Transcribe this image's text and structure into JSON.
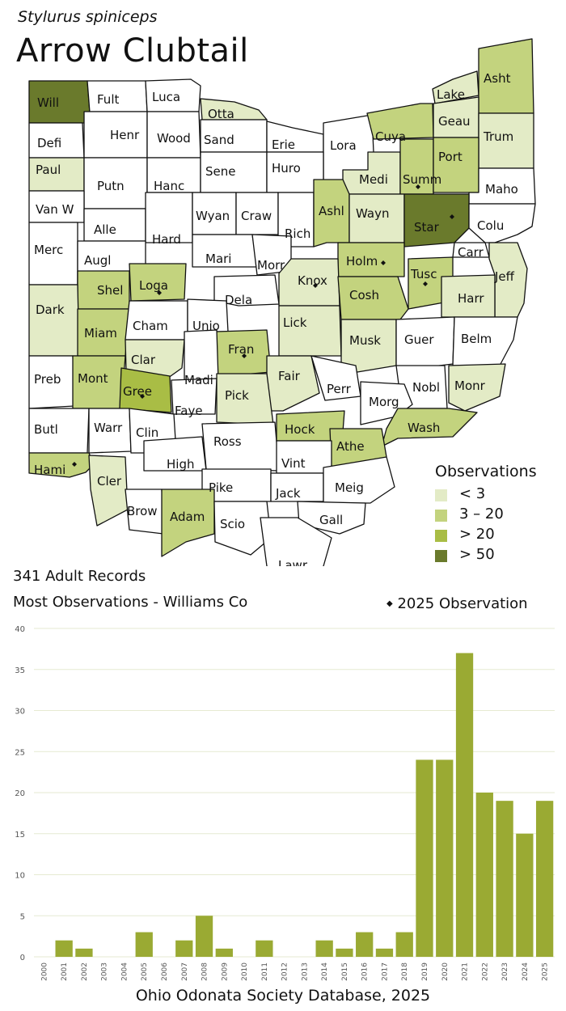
{
  "species": {
    "latin": "Stylurus spiniceps",
    "common": "Arrow Clubtail"
  },
  "colors": {
    "none": "#ffffff",
    "low": "#e3ebc6",
    "mid": "#c3d37e",
    "high": "#a9bd45",
    "vhigh": "#6a7a2c",
    "bar": "#9aaa33",
    "grid": "#e6ead2"
  },
  "legend": {
    "title": "Observations",
    "items": [
      {
        "label": "< 3",
        "color": "#e3ebc6"
      },
      {
        "label": "3 – 20",
        "color": "#c3d37e"
      },
      {
        "label": "> 20",
        "color": "#a9bd45"
      },
      {
        "label": "> 50",
        "color": "#6a7a2c"
      }
    ]
  },
  "records_label": "341 Adult Records",
  "most_observations_label": "Most Observations - Williams Co",
  "observation_2025_label": "2025  Observation",
  "source_label": "Ohio Odonata Society Database, 2025",
  "counties": [
    {
      "name": "Will",
      "level": "vhigh",
      "dot": false
    },
    {
      "name": "Fult",
      "level": "none",
      "dot": false
    },
    {
      "name": "Luca",
      "level": "none",
      "dot": false
    },
    {
      "name": "Otta",
      "level": "low",
      "dot": false
    },
    {
      "name": "Lake",
      "level": "low",
      "dot": false
    },
    {
      "name": "Asht",
      "level": "mid",
      "dot": false
    },
    {
      "name": "Defi",
      "level": "none",
      "dot": false
    },
    {
      "name": "Henr",
      "level": "none",
      "dot": false
    },
    {
      "name": "Wood",
      "level": "none",
      "dot": false
    },
    {
      "name": "Sand",
      "level": "none",
      "dot": false
    },
    {
      "name": "Erie",
      "level": "none",
      "dot": false
    },
    {
      "name": "Lora",
      "level": "none",
      "dot": false
    },
    {
      "name": "Cuya",
      "level": "mid",
      "dot": false
    },
    {
      "name": "Geau",
      "level": "low",
      "dot": false
    },
    {
      "name": "Trum",
      "level": "low",
      "dot": false
    },
    {
      "name": "Paul",
      "level": "low",
      "dot": false
    },
    {
      "name": "Putn",
      "level": "none",
      "dot": false
    },
    {
      "name": "Hanc",
      "level": "none",
      "dot": false
    },
    {
      "name": "Sene",
      "level": "none",
      "dot": false
    },
    {
      "name": "Huro",
      "level": "none",
      "dot": false
    },
    {
      "name": "Medi",
      "level": "low",
      "dot": false
    },
    {
      "name": "Summ",
      "level": "mid",
      "dot": true
    },
    {
      "name": "Port",
      "level": "mid",
      "dot": false
    },
    {
      "name": "Maho",
      "level": "none",
      "dot": false
    },
    {
      "name": "Van W",
      "level": "none",
      "dot": false
    },
    {
      "name": "Alle",
      "level": "none",
      "dot": false
    },
    {
      "name": "Hard",
      "level": "none",
      "dot": false
    },
    {
      "name": "Wyan",
      "level": "none",
      "dot": false
    },
    {
      "name": "Craw",
      "level": "none",
      "dot": false
    },
    {
      "name": "Rich",
      "level": "none",
      "dot": false
    },
    {
      "name": "Ashl",
      "level": "mid",
      "dot": false
    },
    {
      "name": "Wayn",
      "level": "low",
      "dot": false
    },
    {
      "name": "Star",
      "level": "vhigh",
      "dot": true
    },
    {
      "name": "Colu",
      "level": "none",
      "dot": false
    },
    {
      "name": "Merc",
      "level": "none",
      "dot": false
    },
    {
      "name": "Augl",
      "level": "none",
      "dot": false
    },
    {
      "name": "Mari",
      "level": "none",
      "dot": false
    },
    {
      "name": "Morr",
      "level": "none",
      "dot": false
    },
    {
      "name": "Holm",
      "level": "mid",
      "dot": true
    },
    {
      "name": "Carr",
      "level": "none",
      "dot": false
    },
    {
      "name": "Jeff",
      "level": "low",
      "dot": false
    },
    {
      "name": "Shel",
      "level": "mid",
      "dot": false
    },
    {
      "name": "Loga",
      "level": "mid",
      "dot": true
    },
    {
      "name": "Knox",
      "level": "low",
      "dot": true
    },
    {
      "name": "Tusc",
      "level": "mid",
      "dot": true
    },
    {
      "name": "Dark",
      "level": "low",
      "dot": false
    },
    {
      "name": "Dela",
      "level": "none",
      "dot": false
    },
    {
      "name": "Cosh",
      "level": "mid",
      "dot": false
    },
    {
      "name": "Harr",
      "level": "low",
      "dot": false
    },
    {
      "name": "Miam",
      "level": "mid",
      "dot": false
    },
    {
      "name": "Cham",
      "level": "none",
      "dot": false
    },
    {
      "name": "Unio",
      "level": "none",
      "dot": false
    },
    {
      "name": "Lick",
      "level": "low",
      "dot": false
    },
    {
      "name": "Musk",
      "level": "low",
      "dot": false
    },
    {
      "name": "Guer",
      "level": "none",
      "dot": false
    },
    {
      "name": "Belm",
      "level": "none",
      "dot": false
    },
    {
      "name": "Clar",
      "level": "low",
      "dot": false
    },
    {
      "name": "Fran",
      "level": "mid",
      "dot": true
    },
    {
      "name": "Preb",
      "level": "none",
      "dot": false
    },
    {
      "name": "Mont",
      "level": "mid",
      "dot": false
    },
    {
      "name": "Gree",
      "level": "high",
      "dot": true
    },
    {
      "name": "Madi",
      "level": "none",
      "dot": false
    },
    {
      "name": "Fair",
      "level": "low",
      "dot": false
    },
    {
      "name": "Perr",
      "level": "none",
      "dot": false
    },
    {
      "name": "Nobl",
      "level": "none",
      "dot": false
    },
    {
      "name": "Monr",
      "level": "low",
      "dot": false
    },
    {
      "name": "Faye",
      "level": "none",
      "dot": false
    },
    {
      "name": "Pick",
      "level": "low",
      "dot": false
    },
    {
      "name": "Morg",
      "level": "none",
      "dot": false
    },
    {
      "name": "Butl",
      "level": "none",
      "dot": false
    },
    {
      "name": "Warr",
      "level": "none",
      "dot": false
    },
    {
      "name": "Clin",
      "level": "none",
      "dot": false
    },
    {
      "name": "Ross",
      "level": "none",
      "dot": false
    },
    {
      "name": "Hock",
      "level": "mid",
      "dot": false
    },
    {
      "name": "Wash",
      "level": "mid",
      "dot": false
    },
    {
      "name": "Athe",
      "level": "mid",
      "dot": false
    },
    {
      "name": "Hami",
      "level": "mid",
      "dot": true
    },
    {
      "name": "High",
      "level": "none",
      "dot": false
    },
    {
      "name": "Vint",
      "level": "none",
      "dot": false
    },
    {
      "name": "Cler",
      "level": "low",
      "dot": false
    },
    {
      "name": "Pike",
      "level": "none",
      "dot": false
    },
    {
      "name": "Jack",
      "level": "none",
      "dot": false
    },
    {
      "name": "Meig",
      "level": "none",
      "dot": false
    },
    {
      "name": "Brow",
      "level": "none",
      "dot": false
    },
    {
      "name": "Adam",
      "level": "mid",
      "dot": false
    },
    {
      "name": "Scio",
      "level": "none",
      "dot": false
    },
    {
      "name": "Gall",
      "level": "none",
      "dot": false
    },
    {
      "name": "Lawr",
      "level": "none",
      "dot": false
    }
  ],
  "chart_data": {
    "type": "bar",
    "categories": [
      "2000",
      "2001",
      "2002",
      "2003",
      "2004",
      "2005",
      "2006",
      "2007",
      "2008",
      "2009",
      "2010",
      "2011",
      "2012",
      "2013",
      "2014",
      "2015",
      "2016",
      "2017",
      "2018",
      "2019",
      "2020",
      "2021",
      "2022",
      "2023",
      "2024",
      "2025"
    ],
    "values": [
      0,
      2,
      1,
      0,
      0,
      3,
      0,
      2,
      5,
      1,
      0,
      2,
      0,
      0,
      2,
      1,
      3,
      1,
      3,
      24,
      24,
      37,
      20,
      19,
      15,
      19
    ],
    "ylim": [
      0,
      40
    ],
    "yticks": [
      0,
      5,
      10,
      15,
      20,
      25,
      30,
      35,
      40
    ],
    "grid": true,
    "bar_color": "#9aaa33"
  }
}
